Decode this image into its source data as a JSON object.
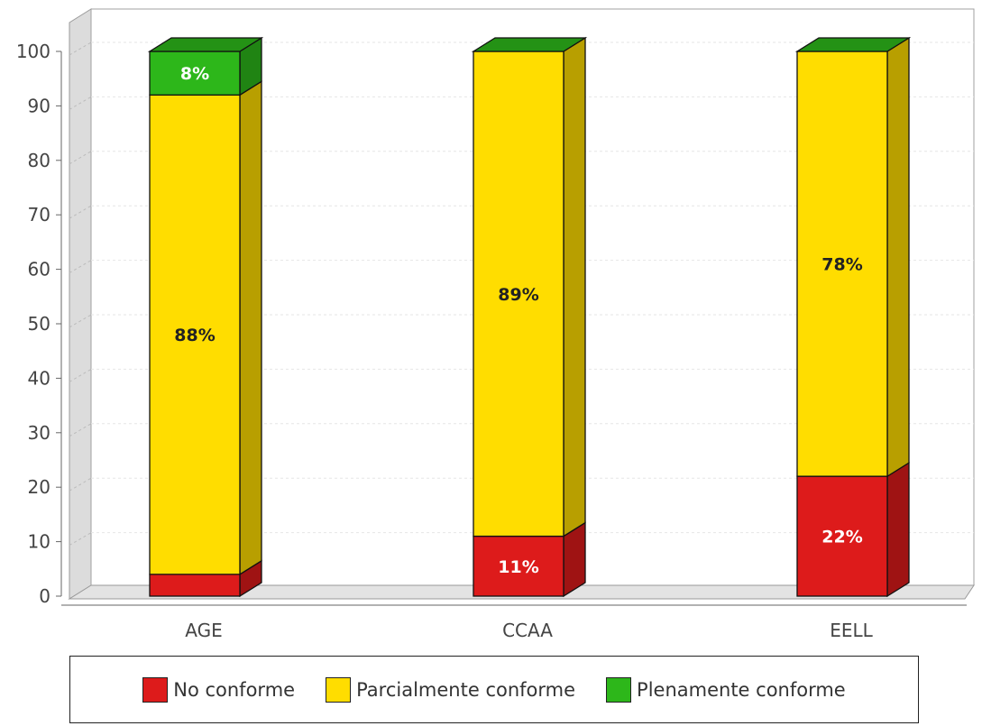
{
  "chart_data": {
    "type": "bar",
    "stacked": true,
    "three_d": true,
    "categories": [
      "AGE",
      "CCAA",
      "EELL"
    ],
    "series": [
      {
        "name": "No conforme",
        "color": "#dd1b1b",
        "values": [
          4,
          11,
          22
        ],
        "labels": [
          "",
          "11%",
          "22%"
        ],
        "label_color": "#ffffff"
      },
      {
        "name": "Parcialmente conforme",
        "color": "#ffdd00",
        "values": [
          88,
          89,
          78
        ],
        "labels": [
          "88%",
          "89%",
          "78%"
        ],
        "label_color": "#222222"
      },
      {
        "name": "Plenamente conforme",
        "color": "#2db71a",
        "values": [
          8,
          0,
          0
        ],
        "labels": [
          "8%",
          "",
          ""
        ],
        "label_color": "#ffffff"
      }
    ],
    "ylim": [
      0,
      100
    ],
    "yticks": [
      "0",
      "10",
      "20",
      "30",
      "40",
      "50",
      "60",
      "70",
      "80",
      "90",
      "100"
    ],
    "grid": true,
    "legend_position": "bottom"
  }
}
